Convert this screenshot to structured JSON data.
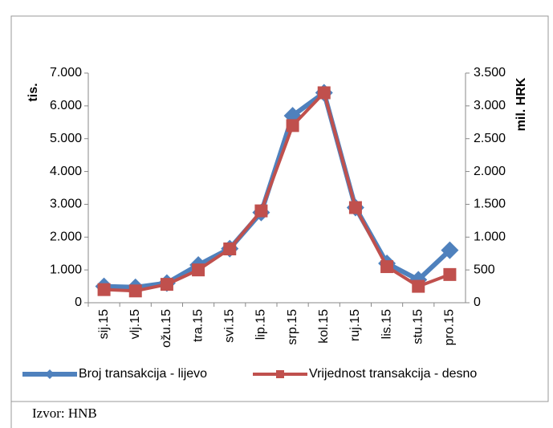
{
  "chart_data": {
    "type": "line",
    "categories": [
      "sij.15",
      "vlj.15",
      "ožu.15",
      "tra.15",
      "svi.15",
      "lip.15",
      "srp.15",
      "kol.15",
      "ruj.15",
      "lis.15",
      "stu.15",
      "pro.15"
    ],
    "series": [
      {
        "name": "Broj transakcija - lijevo",
        "color": "#4f81bd",
        "values": [
          500,
          470,
          600,
          1150,
          1650,
          2750,
          5700,
          6400,
          2900,
          1200,
          700,
          1600
        ]
      },
      {
        "name": "Vrijednost transakcija - desno",
        "color": "#c0504d",
        "axis": "y2",
        "values": [
          200,
          180,
          280,
          500,
          820,
          1400,
          2700,
          3200,
          1450,
          550,
          250,
          430
        ]
      }
    ],
    "ylabel": "tis.",
    "y2label": "mil. HRK",
    "ylim": [
      0,
      7000
    ],
    "yticks": [
      0,
      {
        "value": 1000,
        "label": "1.000"
      },
      {
        "value": 2000,
        "label": "2.000"
      },
      {
        "value": 3000,
        "label": "3.000"
      },
      {
        "value": 4000,
        "label": "4.000"
      },
      {
        "value": 5000,
        "label": "5.000"
      },
      {
        "value": 6000,
        "label": "6.000"
      },
      {
        "value": 7000,
        "label": "7.000"
      }
    ],
    "y2lim": [
      0,
      3500
    ],
    "y2ticks": [
      0,
      500,
      {
        "value": 1000,
        "label": "1.000"
      },
      {
        "value": 1500,
        "label": "1.500"
      },
      {
        "value": 2000,
        "label": "2.000"
      },
      {
        "value": 2500,
        "label": "2.500"
      },
      {
        "value": 3000,
        "label": "3.000"
      },
      {
        "value": 3500,
        "label": "3.500"
      }
    ],
    "legend": "bottom",
    "source": "Izvor: HNB"
  }
}
